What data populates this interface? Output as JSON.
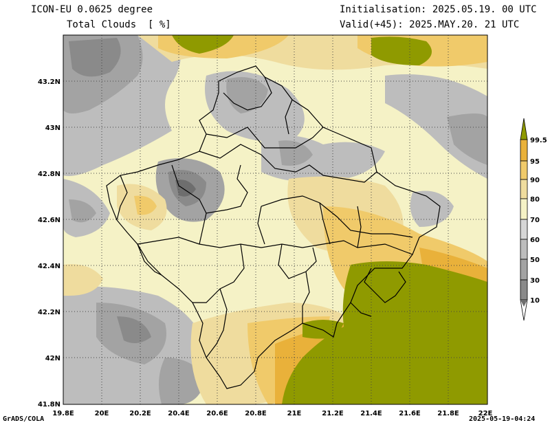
{
  "header": {
    "model_line": "ICON-EU 0.0625 degree",
    "field_line": "Total Clouds  [ %]",
    "init_line": "Initialisation: 2025.05.19. 00 UTC",
    "valid_line": "Valid(+45): 2025.MAY.20. 21 UTC"
  },
  "footer": {
    "left": "GrADS/COLA",
    "right": "2025-05-19-04:24"
  },
  "axes": {
    "lon_labels": [
      "19.8E",
      "20E",
      "20.2E",
      "20.4E",
      "20.6E",
      "20.8E",
      "21E",
      "21.2E",
      "21.4E",
      "21.6E",
      "21.8E",
      "22E"
    ],
    "lat_labels": [
      "43.2N",
      "43N",
      "42.8N",
      "42.6N",
      "42.4N",
      "42.2N",
      "42N",
      "41.8N"
    ],
    "lon_range": [
      19.8,
      22.0
    ],
    "lat_range": [
      41.8,
      43.4
    ],
    "grid": "dotted"
  },
  "colorbar": {
    "levels": [
      "10",
      "30",
      "50",
      "60",
      "70",
      "80",
      "90",
      "95",
      "99.5"
    ],
    "colors": [
      "#6e6e6e",
      "#8a8a8a",
      "#a3a3a3",
      "#bdbdbd",
      "#d6d6d6",
      "#f5f2c6",
      "#efdc9e",
      "#f0ca6a",
      "#e9b13a",
      "#8f9a00"
    ]
  },
  "legend_colors": {
    "ocean_like_clear": "#f5f2c6",
    "high_cloud_olive": "#8f9a00",
    "border_line": "#000000"
  }
}
